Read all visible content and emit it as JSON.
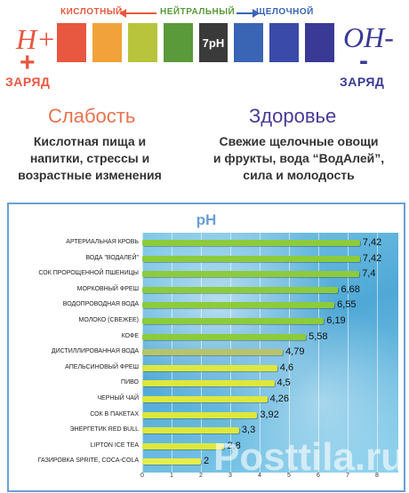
{
  "scale": {
    "acidic_label": "КИСЛОТНЫЙ",
    "neutral_label": "НЕЙТРАЛЬНЫЙ",
    "alkaline_label": "ЩЕЛОЧНОЙ",
    "neutral_swatch": "7pH",
    "swatch_colors": [
      "#e8573f",
      "#f2a23a",
      "#b8c43c",
      "#5a9a3a",
      "#3a3a3a",
      "#3a64b4",
      "#3a4aa8",
      "#3a3a96"
    ],
    "left_ion": "H+",
    "left_sign": "+",
    "left_charge": "ЗАРЯД",
    "right_ion": "OH-",
    "right_sign": "-",
    "right_charge": "ЗАРЯД"
  },
  "left": {
    "title": "Слабость",
    "lines": [
      "Кислотная пища и",
      "напитки, стрессы и",
      "возрастные изменения"
    ]
  },
  "right": {
    "title": "Здоровье",
    "lines": [
      "Свежие щелочные овощи",
      "и фрукты, вода “ВодАлей”,",
      "сила и молодость"
    ]
  },
  "chart_data": {
    "type": "bar",
    "orientation": "horizontal",
    "title": "pH",
    "categories": [
      "АРТЕРИАЛЬНАЯ КРОВЬ",
      "ВОДА \"ВОДАЛЕЙ\"",
      "СОК ПРОРОЩЕННОЙ ПШЕНИЦЫ",
      "МОРКОВНЫЙ ФРЕШ",
      "ВОДОПРОВОДНАЯ ВОДА",
      "МОЛОКО (СВЕЖЕЕ)",
      "КОФЕ",
      "ДИСТИЛЛИРОВАННАЯ ВОДА",
      "АПЕЛЬСИНОВЫЙ ФРЕШ",
      "ПИВО",
      "ЧЕРНЫЙ ЧАЙ",
      "СОК В ПАКЕТАХ",
      "ЭНЕРГЕТИК RED BULL",
      "LIPTON ICE TEA",
      "ГАЗИРОВКА SPRITE, COCA-COLA"
    ],
    "values": [
      7.42,
      7.42,
      7.4,
      6.68,
      6.55,
      6.19,
      5.58,
      4.79,
      4.6,
      4.5,
      4.26,
      3.92,
      3.3,
      2.8,
      2
    ],
    "value_labels": [
      "7,42",
      "7,42",
      "7,4",
      "6,68",
      "6,55",
      "6,19",
      "5,58",
      "4,79",
      "4,6",
      "4,5",
      "4,26",
      "3,92",
      "3,3",
      "2,8",
      "2"
    ],
    "bar_colors": [
      "#8ccb3c",
      "#8ccb3c",
      "#8ccb3c",
      "#8ccb3c",
      "#8ccb3c",
      "#8ccb3c",
      "#8ccb3c",
      "#b8c46a",
      "#dde83a",
      "#dde83a",
      "#dde83a",
      "#dde83a",
      "#dde83a",
      "#dde83a",
      "#e6ee4a"
    ],
    "xlim": [
      0,
      8
    ],
    "xticks": [
      "0",
      "1",
      "2",
      "3",
      "4",
      "5",
      "6",
      "7",
      "8"
    ]
  },
  "watermark": "Posttila.ru"
}
